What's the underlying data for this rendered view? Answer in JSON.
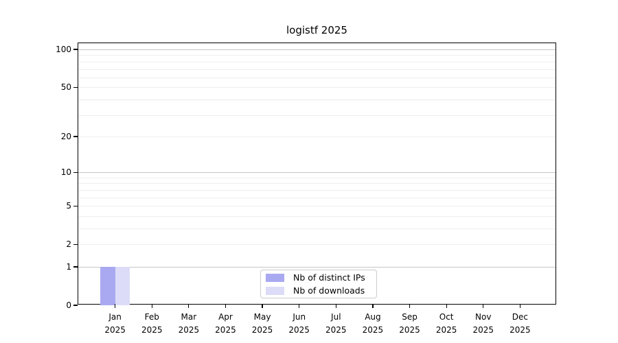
{
  "chart_data": {
    "type": "bar",
    "title": "logistf 2025",
    "x_year": "2025",
    "categories": [
      "Jan",
      "Feb",
      "Mar",
      "Apr",
      "May",
      "Jun",
      "Jul",
      "Aug",
      "Sep",
      "Oct",
      "Nov",
      "Dec"
    ],
    "series": [
      {
        "name": "Nb of distinct IPs",
        "color": "#a9a9f1",
        "values": [
          1,
          0,
          0,
          0,
          0,
          0,
          0,
          0,
          0,
          0,
          0,
          0
        ]
      },
      {
        "name": "Nb of downloads",
        "color": "#dcdcf8",
        "values": [
          1,
          0,
          0,
          0,
          0,
          0,
          0,
          0,
          0,
          0,
          0,
          0
        ]
      }
    ],
    "yscale": "log1p",
    "ylim": [
      0,
      112
    ],
    "yticks": [
      0,
      1,
      2,
      5,
      10,
      20,
      50,
      100
    ],
    "ytick_labels": [
      "0",
      "1",
      "2",
      "5",
      "10",
      "20",
      "50",
      "100"
    ],
    "gridlines_major": [
      1,
      10,
      100
    ],
    "gridlines_minor": [
      2,
      3,
      4,
      5,
      6,
      7,
      8,
      9,
      20,
      30,
      40,
      50,
      60,
      70,
      80,
      90
    ],
    "grid": true,
    "legend_position": "lower center"
  },
  "colors": {
    "major_grid": "#c6c6c6",
    "minor_grid": "#ededed",
    "spine": "#000000",
    "text": "#000000",
    "legend_border": "#cccccc"
  }
}
